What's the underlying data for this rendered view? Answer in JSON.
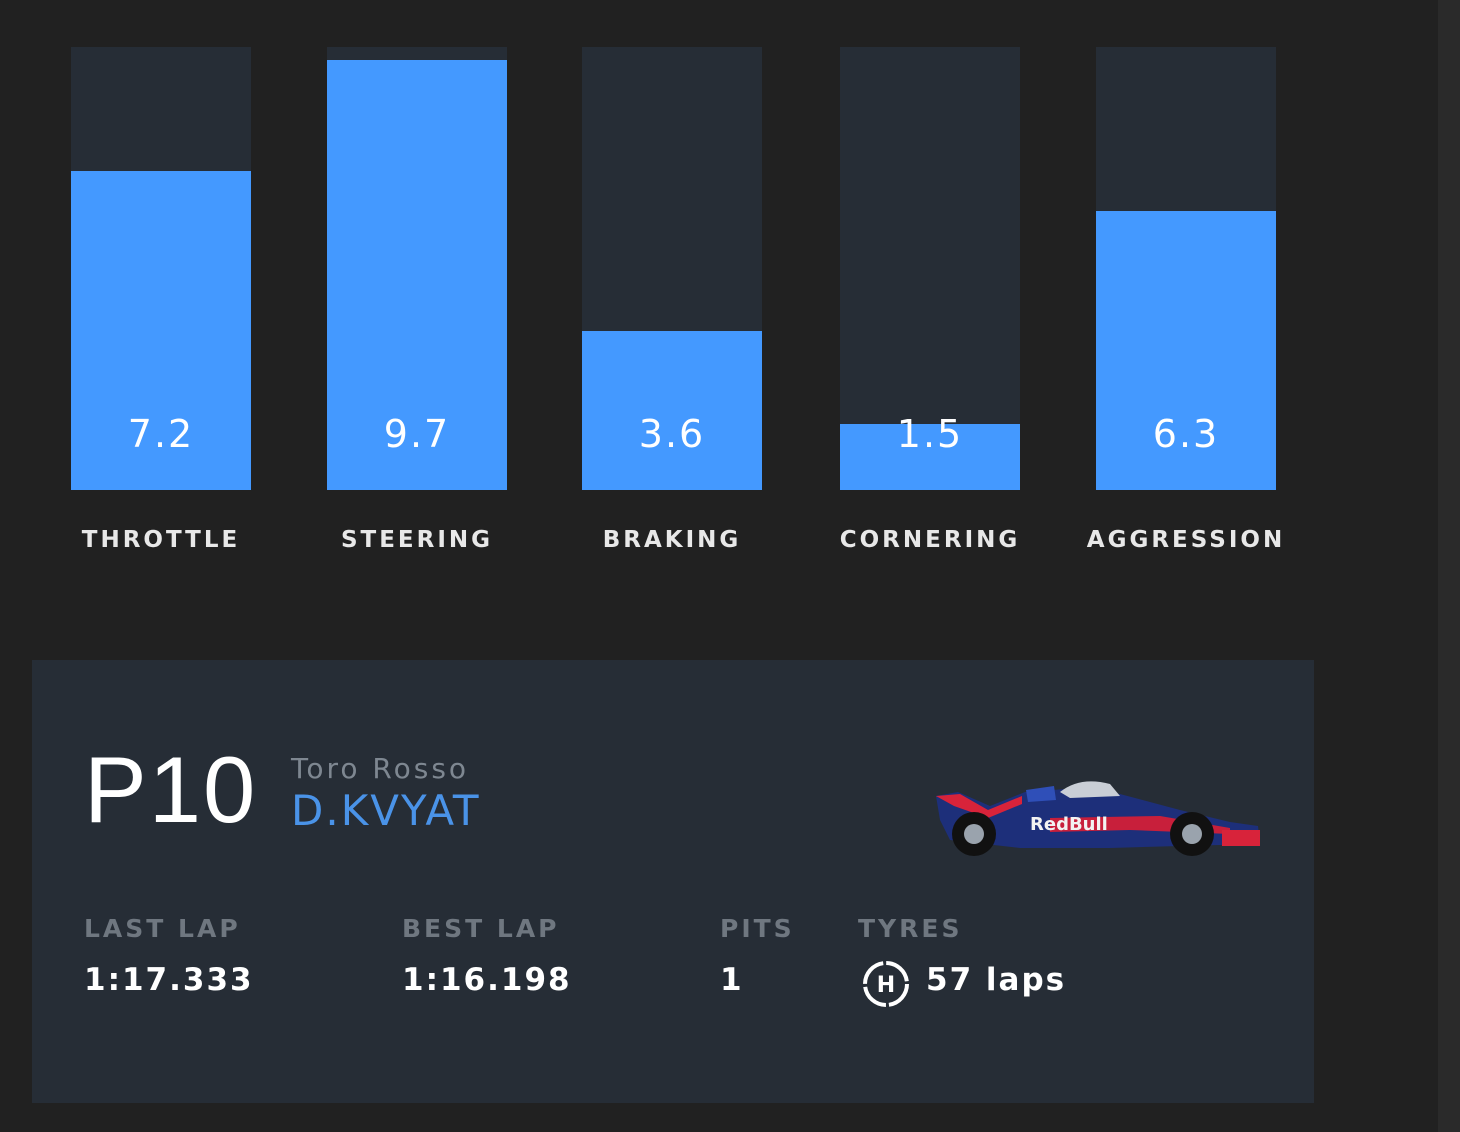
{
  "chart_data": {
    "type": "bar",
    "categories": [
      "THROTTLE",
      "STEERING",
      "BRAKING",
      "CORNERING",
      "AGGRESSION"
    ],
    "values": [
      7.2,
      9.7,
      3.6,
      1.5,
      6.3
    ],
    "value_labels": [
      "7.2",
      "9.7",
      "3.6",
      "1.5",
      "6.3"
    ],
    "ylim": [
      0,
      10
    ]
  },
  "colors": {
    "background": "#212121",
    "bar_track": "#262d36",
    "bar_fill": "#4499ff",
    "driver_name": "#4a93e8"
  },
  "driver_card": {
    "position": "P10",
    "team": "Toro Rosso",
    "driver": "D.KVYAT",
    "car_icon": "race-car-icon",
    "stats": {
      "last_lap_label": "LAST LAP",
      "last_lap_value": "1:17.333",
      "best_lap_label": "BEST LAP",
      "best_lap_value": "1:16.198",
      "pits_label": "PITS",
      "pits_value": "1",
      "tyres_label": "TYRES",
      "tyre_compound": "H",
      "tyres_value": "57 laps"
    }
  }
}
